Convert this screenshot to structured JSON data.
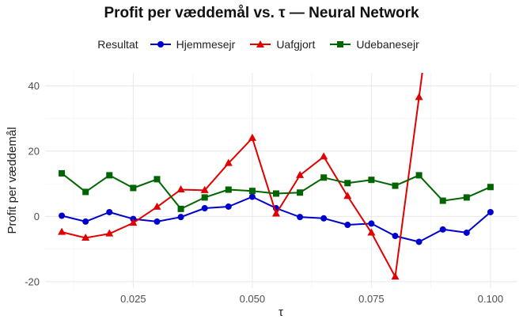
{
  "chart_data": {
    "type": "line",
    "title": "Profit per væddemål vs. τ — Neural Network",
    "xlabel": "τ",
    "ylabel": "Profit per væddemål",
    "legend_title": "Resultat",
    "legend_position": "top",
    "grid": true,
    "xlim": [
      0.0065,
      0.1055
    ],
    "ylim": [
      -22,
      44
    ],
    "xticks": [
      0.025,
      0.05,
      0.075,
      0.1
    ],
    "xtick_labels": [
      "0.025",
      "0.050",
      "0.075",
      "0.100"
    ],
    "yticks": [
      -20,
      0,
      20,
      40
    ],
    "ytick_labels": [
      "-20",
      "0",
      "20",
      "40"
    ],
    "x": [
      0.01,
      0.015,
      0.02,
      0.025,
      0.03,
      0.035,
      0.04,
      0.045,
      0.05,
      0.055,
      0.06,
      0.065,
      0.07,
      0.075,
      0.08,
      0.085,
      0.09,
      0.095,
      0.1
    ],
    "series": [
      {
        "name": "Hjemmesejr",
        "color": "#0000cd",
        "marker": "circle",
        "values": [
          0.2,
          -1.6,
          1.3,
          -0.8,
          -1.6,
          -0.2,
          2.5,
          3.0,
          6.0,
          2.5,
          -0.2,
          -0.6,
          -2.6,
          -2.2,
          -6.0,
          -7.8,
          -4.0,
          -5.0,
          1.3
        ]
      },
      {
        "name": "Uafgjort",
        "color": "#e00000",
        "marker": "triangle",
        "values": [
          -4.8,
          -6.6,
          -5.3,
          -2.0,
          2.9,
          8.2,
          8.0,
          16.3,
          24.0,
          0.8,
          12.6,
          18.3,
          6.2,
          -5.0,
          -18.5,
          36.5,
          null,
          null,
          null
        ],
        "extends_beyond_top": [
          0.085,
          0.0875
        ]
      },
      {
        "name": "Udebanesejr",
        "color": "#006400",
        "marker": "square",
        "values": [
          13.2,
          7.5,
          12.6,
          8.7,
          11.4,
          2.3,
          5.8,
          8.2,
          7.8,
          7.0,
          7.3,
          11.9,
          10.2,
          11.2,
          9.4,
          12.6,
          4.8,
          5.8,
          9.0
        ]
      }
    ]
  }
}
